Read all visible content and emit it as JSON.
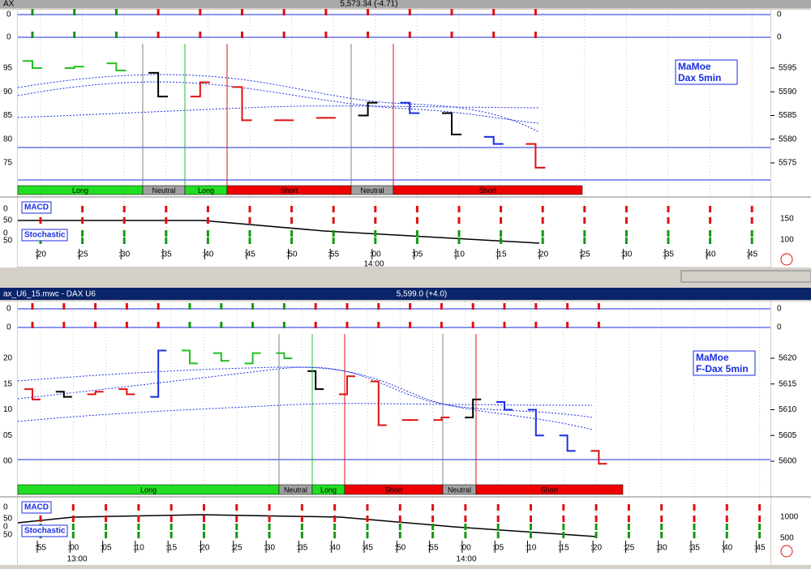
{
  "windows": [
    {
      "title": "AX",
      "quote": "5,573.34 (-4.71)",
      "legend": [
        "MaMoe",
        "Dax 5min"
      ],
      "top_left": [
        "0",
        "0"
      ],
      "top_right": [
        "0",
        "0"
      ],
      "price_left": [
        "95",
        "90",
        "85",
        "80",
        "75"
      ],
      "price_right": [
        5595,
        5590,
        5585,
        5580,
        5575
      ],
      "bars": [
        {
          "open": 5596.5,
          "close": 5595,
          "color": "#22c022"
        },
        {
          "open": 5595,
          "close": 5595.3,
          "color": "#22c022"
        },
        {
          "open": 5596,
          "close": 5594.5,
          "color": "#22c022"
        },
        {
          "open": 5594,
          "close": 5589,
          "color": "#000000"
        },
        {
          "open": 5589,
          "close": 5592,
          "color": "#e01010"
        },
        {
          "open": 5591,
          "close": 5584,
          "color": "#e01010"
        },
        {
          "open": 5584,
          "close": 5584,
          "color": "#e01010"
        },
        {
          "open": 5584.5,
          "close": 5584.5,
          "color": "#e01010"
        },
        {
          "open": 5585,
          "close": 5587.7,
          "color": "#000000"
        },
        {
          "open": 5587.7,
          "close": 5585.5,
          "color": "#1a2ee0"
        },
        {
          "open": 5585.5,
          "close": 5581,
          "color": "#000000"
        },
        {
          "open": 5580.5,
          "close": 5579,
          "color": "#1a2ee0"
        },
        {
          "open": 5579,
          "close": 5574,
          "color": "#e01010"
        }
      ],
      "segments": [
        "Long",
        "Neutral",
        "Long",
        "Short",
        "Neutral",
        "Short"
      ],
      "indicators": [
        "MACD",
        "Stochastic"
      ],
      "ind_left": [
        "0",
        "50",
        "0",
        "50"
      ],
      "ind_right": [
        "150",
        "100"
      ],
      "times": [
        ":20",
        ":25",
        ":30",
        ":35",
        ":40",
        ":45",
        ":50",
        ":55",
        ":00",
        ":05",
        ":10",
        ":15",
        ":20",
        ":25",
        ":30",
        ":35",
        ":40",
        ":45"
      ],
      "hours": [
        "14:00"
      ]
    },
    {
      "title": "ax_U6_15.mwc - DAX U6",
      "quote": "5,599.0 (+4.0)",
      "legend": [
        "MaMoe",
        "F-Dax 5min"
      ],
      "top_left": [
        "0",
        "0"
      ],
      "top_right": [
        "0",
        "0"
      ],
      "price_left": [
        "20",
        "15",
        "10",
        "05",
        "00"
      ],
      "price_right": [
        5620,
        5615,
        5610,
        5605,
        5600
      ],
      "bars": [
        {
          "open": 5614,
          "close": 5612,
          "color": "#e01010"
        },
        {
          "open": 5613.5,
          "close": 5612.5,
          "color": "#000000"
        },
        {
          "open": 5613,
          "close": 5613.5,
          "color": "#e01010"
        },
        {
          "open": 5614,
          "close": 5613,
          "color": "#e01010"
        },
        {
          "open": 5612.5,
          "close": 5621.5,
          "color": "#1a2ee0"
        },
        {
          "open": 5621.5,
          "close": 5619,
          "color": "#22c022"
        },
        {
          "open": 5621,
          "close": 5619.5,
          "color": "#22c022"
        },
        {
          "open": 5619,
          "close": 5621,
          "color": "#22c022"
        },
        {
          "open": 5621,
          "close": 5620,
          "color": "#22c022"
        },
        {
          "open": 5617.5,
          "close": 5614,
          "color": "#000000"
        },
        {
          "open": 5613,
          "close": 5616.5,
          "color": "#e01010"
        },
        {
          "open": 5615.5,
          "close": 5607,
          "color": "#e01010"
        },
        {
          "open": 5608,
          "close": 5608,
          "color": "#e01010"
        },
        {
          "open": 5608,
          "close": 5608.5,
          "color": "#e01010"
        },
        {
          "open": 5608.5,
          "close": 5612,
          "color": "#000000"
        },
        {
          "open": 5611.5,
          "close": 5610,
          "color": "#1a2ee0"
        },
        {
          "open": 5610,
          "close": 5605,
          "color": "#1a2ee0"
        },
        {
          "open": 5605,
          "close": 5602,
          "color": "#1a2ee0"
        },
        {
          "open": 5602,
          "close": 5599.5,
          "color": "#e01010"
        }
      ],
      "segments": [
        "Long",
        "Neutral",
        "Long",
        "Short",
        "Neutral",
        "Short"
      ],
      "indicators": [
        "MACD",
        "Stochastic"
      ],
      "ind_left": [
        "0",
        "50",
        "0",
        "50"
      ],
      "ind_right": [
        "1000",
        "500"
      ],
      "times": [
        ":55",
        ":00",
        ":05",
        ":10",
        ":15",
        ":20",
        ":25",
        ":30",
        ":35",
        ":40",
        ":45",
        ":50",
        ":55",
        ":00",
        ":05",
        ":10",
        ":15",
        ":20",
        ":25",
        ":30",
        ":35",
        ":40",
        ":45"
      ],
      "hours": [
        "13:00",
        "14:00"
      ]
    }
  ]
}
